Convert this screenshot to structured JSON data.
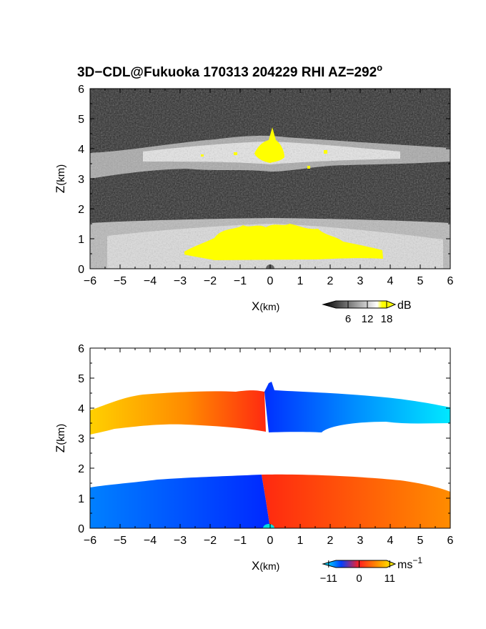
{
  "title": {
    "main": "3D−CDL@Fukuoka 170313 204229 RHI AZ=292",
    "superscript": "o"
  },
  "chart_data": [
    {
      "type": "heatmap",
      "panel": "signal-intensity",
      "xlabel_main": "X",
      "xlabel_unit": "(km)",
      "ylabel_main": "Z",
      "ylabel_unit": "(km)",
      "xlim": [
        -6,
        6
      ],
      "ylim": [
        0,
        6
      ],
      "xticks": [
        "−6",
        "−5",
        "−4",
        "−3",
        "−2",
        "−1",
        "0",
        "1",
        "2",
        "3",
        "4",
        "5",
        "6"
      ],
      "yticks": [
        "0",
        "1",
        "2",
        "3",
        "4",
        "5",
        "6"
      ],
      "colorbar": {
        "unit": "dB",
        "ticks": [
          "6",
          "12",
          "18"
        ],
        "tick_values": [
          6,
          12,
          18
        ],
        "range": [
          0,
          20
        ],
        "colors": [
          "#000000",
          "#ffffff",
          "#ffff00"
        ]
      },
      "features": {
        "upper_layer_z": [
          3.1,
          4.2
        ],
        "lower_layer_z": [
          0.0,
          1.5
        ],
        "saturated_color": "#ffff00",
        "background_color": "#2b2b2b"
      }
    },
    {
      "type": "heatmap",
      "panel": "doppler-velocity",
      "xlabel_main": "X",
      "xlabel_unit": "(km)",
      "ylabel_main": "Z",
      "ylabel_unit": "(km)",
      "xlim": [
        -6,
        6
      ],
      "ylim": [
        0,
        6
      ],
      "xticks": [
        "−6",
        "−5",
        "−4",
        "−3",
        "−2",
        "−1",
        "0",
        "1",
        "2",
        "3",
        "4",
        "5",
        "6"
      ],
      "yticks": [
        "0",
        "1",
        "2",
        "3",
        "4",
        "5",
        "6"
      ],
      "colorbar": {
        "unit": "ms",
        "unit_exp": "−1",
        "ticks": [
          "−11",
          "0",
          "11"
        ],
        "tick_values": [
          -11,
          0,
          11
        ],
        "range": [
          -13,
          13
        ],
        "colors": [
          "#00ffff",
          "#0040ff",
          "#ff2020",
          "#ffff00"
        ]
      },
      "features": {
        "upper_layer_z": [
          3.3,
          4.4
        ],
        "lower_layer_z": [
          0.0,
          1.6
        ],
        "left_side": "positive (orange/yellow) aloft, negative (blue) near ground",
        "right_side": "negative (blue/cyan) aloft, positive (red/orange) near ground"
      }
    }
  ]
}
